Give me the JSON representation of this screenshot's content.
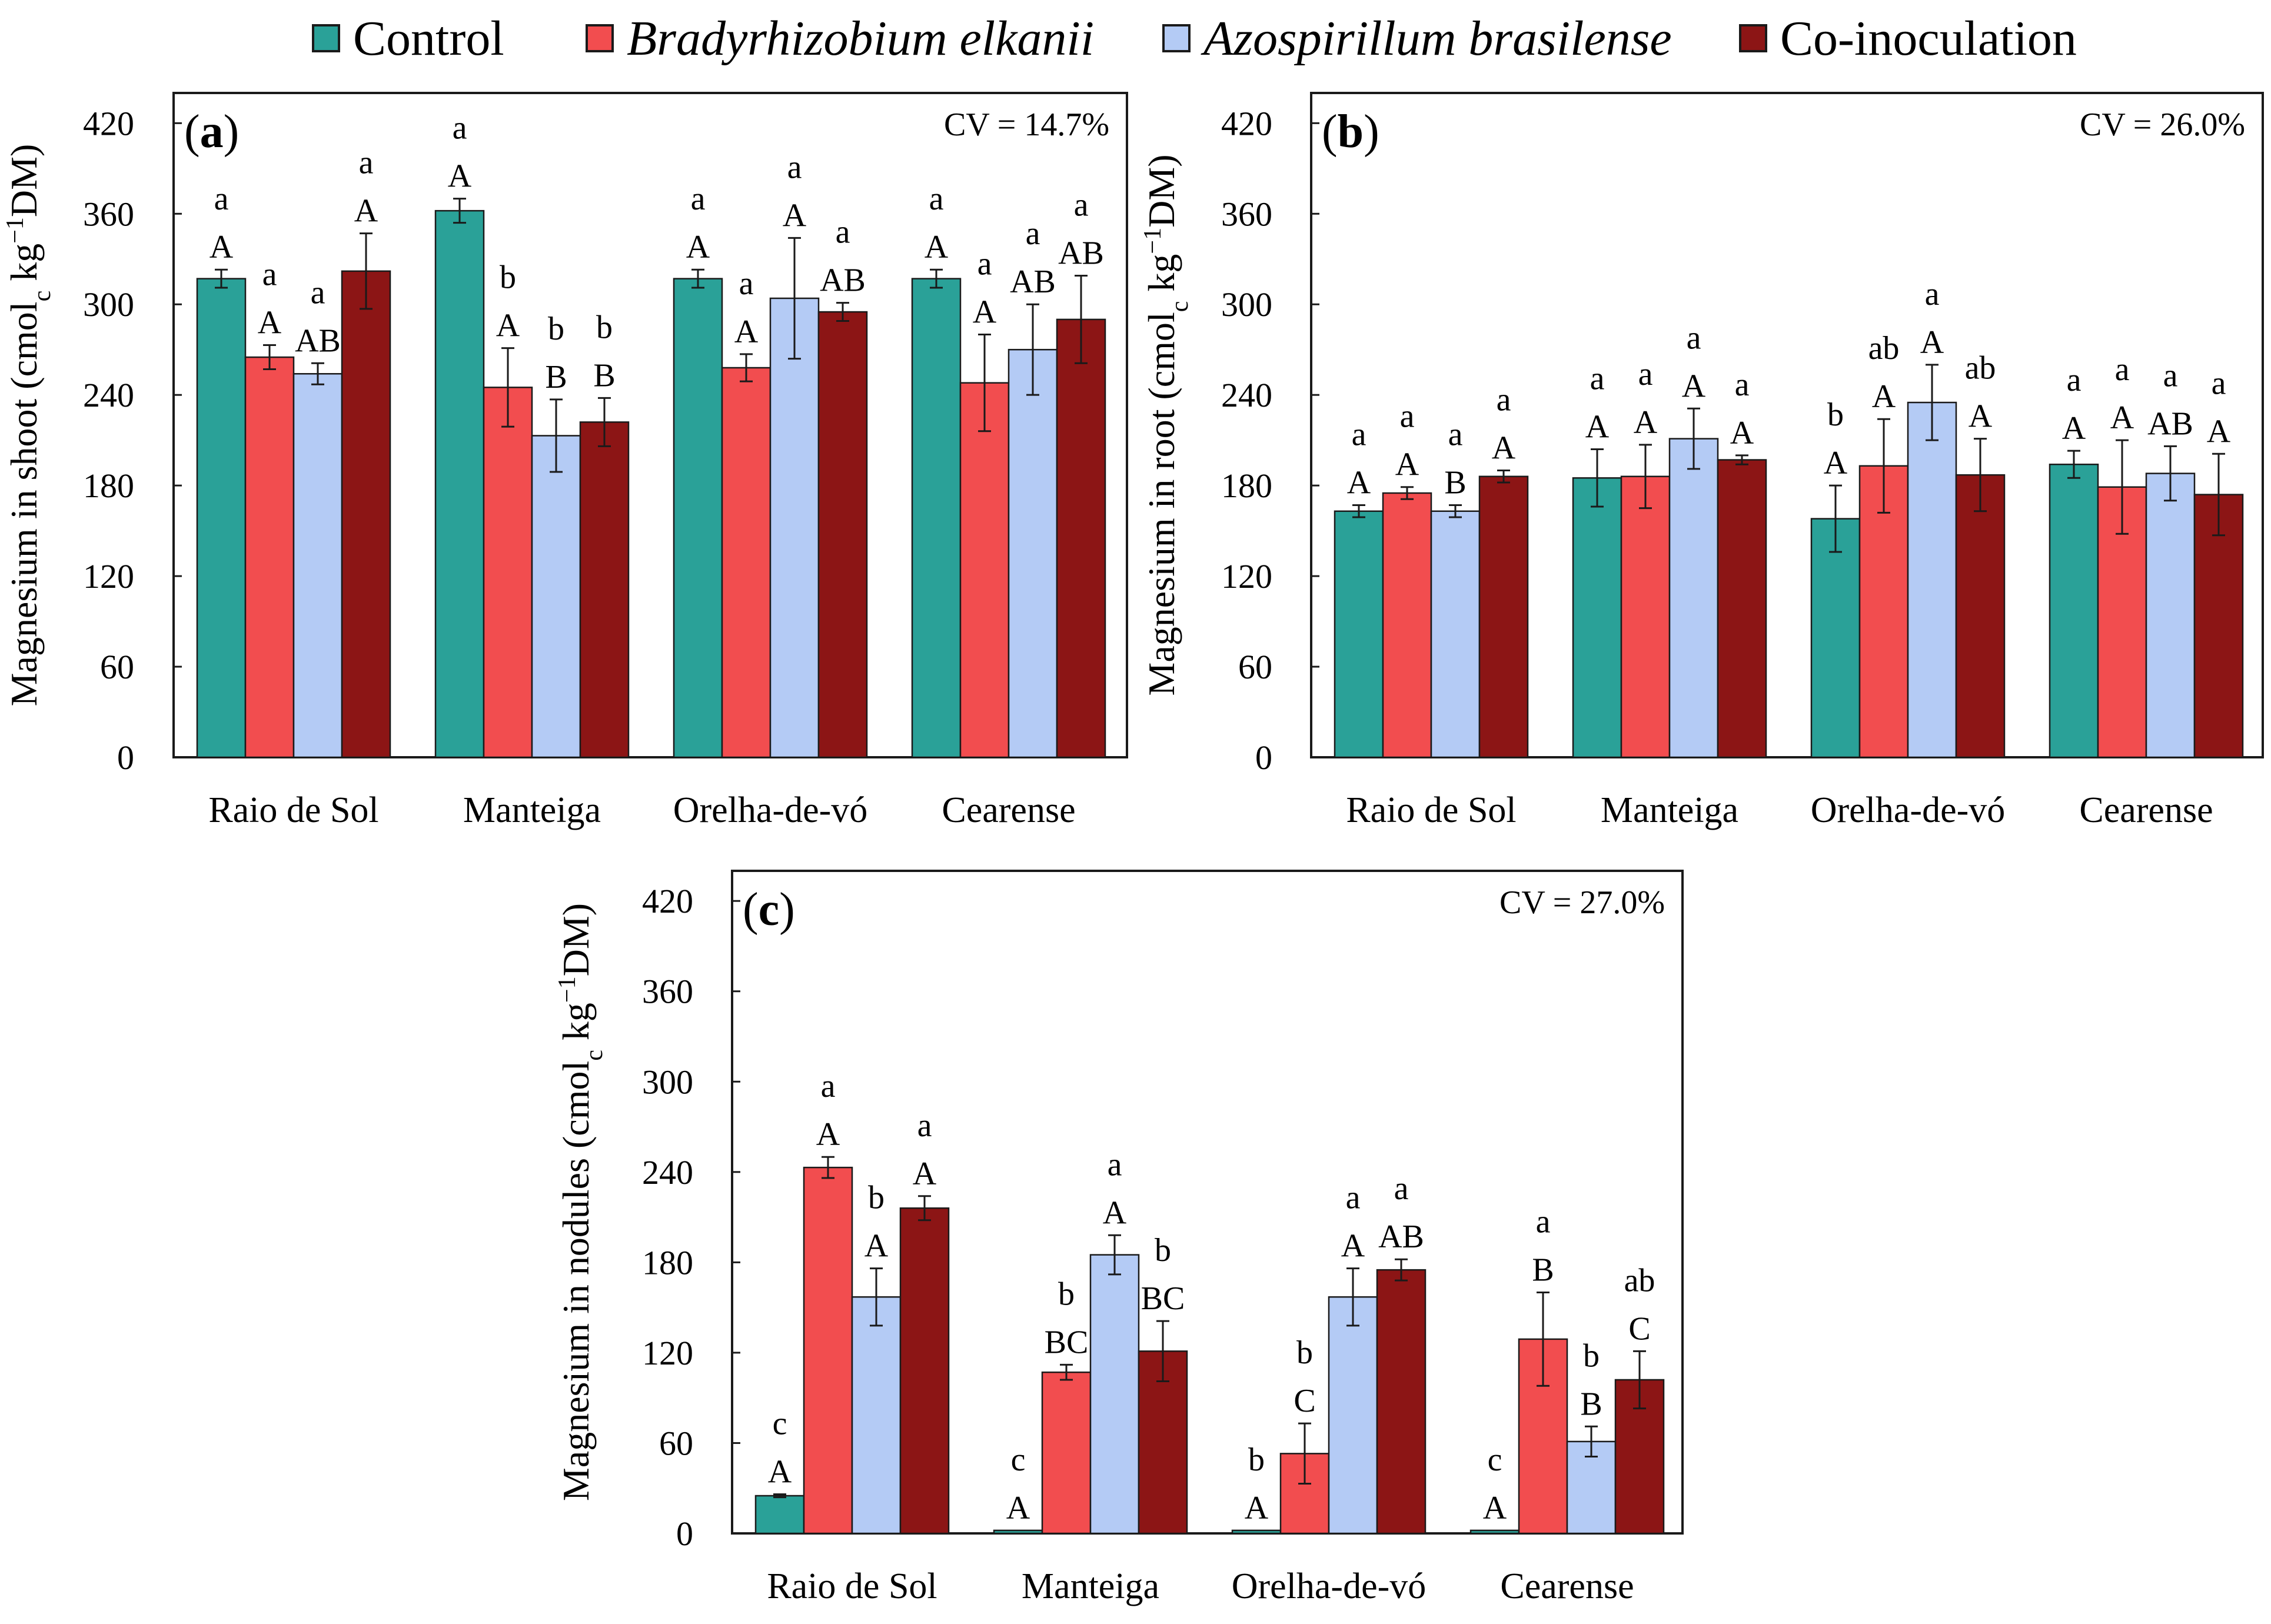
{
  "legend": {
    "items": [
      {
        "label": "Control",
        "color": "#2aa198",
        "italic": false
      },
      {
        "label": "Bradyrhizobium elkanii",
        "color": "#f24d4f",
        "italic": true
      },
      {
        "label": "Azospirillum brasilense",
        "color": "#b4cbf5",
        "italic": true
      },
      {
        "label": "Co-inoculation",
        "color": "#8c1515",
        "italic": false
      }
    ]
  },
  "chart_data": [
    {
      "type": "bar",
      "panel": "(a)",
      "ylabel_pre": "Magnesium in shoot (cmol",
      "ylabel_sub": "c",
      "ylabel_mid": " kg",
      "ylabel_sup": "−1",
      "ylabel_post": "DM)",
      "cv": "CV = 14.7%",
      "ylim": [
        0,
        440
      ],
      "yticks": [
        "0",
        "60",
        "120",
        "180",
        "240",
        "300",
        "360",
        "420"
      ],
      "categories": [
        "Raio de Sol",
        "Manteiga",
        "Orelha-de-vó",
        "Cearense"
      ],
      "series": [
        {
          "name": "Control",
          "values": [
            317,
            362,
            317,
            317
          ],
          "errors": [
            6,
            8,
            6,
            6
          ],
          "caps": [
            "A",
            "A",
            "A",
            "A"
          ],
          "lows": [
            "a",
            "a",
            "a",
            "a"
          ]
        },
        {
          "name": "Bradyrhizobium elkanii",
          "values": [
            265,
            245,
            258,
            248
          ],
          "errors": [
            8,
            26,
            9,
            32
          ],
          "caps": [
            "A",
            "A",
            "A",
            "A"
          ],
          "lows": [
            "a",
            "b",
            "a",
            "a"
          ]
        },
        {
          "name": "Azospirillum brasilense",
          "values": [
            254,
            213,
            304,
            270
          ],
          "errors": [
            7,
            24,
            40,
            30
          ],
          "caps": [
            "AB",
            "B",
            "A",
            "AB"
          ],
          "lows": [
            "a",
            "b",
            "a",
            "a"
          ]
        },
        {
          "name": "Co-inoculation",
          "values": [
            322,
            222,
            295,
            290
          ],
          "errors": [
            25,
            16,
            6,
            29
          ],
          "caps": [
            "A",
            "B",
            "AB",
            "AB"
          ],
          "lows": [
            "a",
            "b",
            "a",
            "a"
          ]
        }
      ]
    },
    {
      "type": "bar",
      "panel": "(b)",
      "ylabel_pre": "Magnesium in root (cmol",
      "ylabel_sub": "c",
      "ylabel_mid": " kg",
      "ylabel_sup": "−1",
      "ylabel_post": "DM)",
      "cv": "CV = 26.0%",
      "ylim": [
        0,
        440
      ],
      "yticks": [
        "0",
        "60",
        "120",
        "180",
        "240",
        "300",
        "360",
        "420"
      ],
      "categories": [
        "Raio de Sol",
        "Manteiga",
        "Orelha-de-vó",
        "Cearense"
      ],
      "series": [
        {
          "name": "Control",
          "values": [
            163,
            185,
            158,
            194
          ],
          "errors": [
            4,
            19,
            22,
            9
          ],
          "caps": [
            "A",
            "A",
            "A",
            "A"
          ],
          "lows": [
            "a",
            "a",
            "b",
            "a"
          ]
        },
        {
          "name": "Bradyrhizobium elkanii",
          "values": [
            175,
            186,
            193,
            179
          ],
          "errors": [
            4,
            21,
            31,
            31
          ],
          "caps": [
            "A",
            "A",
            "A",
            "A"
          ],
          "lows": [
            "a",
            "a",
            "ab",
            "a"
          ]
        },
        {
          "name": "Azospirillum brasilense",
          "values": [
            163,
            211,
            235,
            188
          ],
          "errors": [
            4,
            20,
            25,
            18
          ],
          "caps": [
            "B",
            "A",
            "A",
            "AB"
          ],
          "lows": [
            "a",
            "a",
            "a",
            "a"
          ]
        },
        {
          "name": "Co-inoculation",
          "values": [
            186,
            197,
            187,
            174
          ],
          "errors": [
            4,
            3,
            24,
            27
          ],
          "caps": [
            "A",
            "A",
            "A",
            "A"
          ],
          "lows": [
            "a",
            "a",
            "ab",
            "a"
          ]
        }
      ]
    },
    {
      "type": "bar",
      "panel": "(c)",
      "ylabel_pre": "Magnesium in nodules (cmol",
      "ylabel_sub": "c",
      "ylabel_mid": " kg",
      "ylabel_sup": "−1",
      "ylabel_post": "DM)",
      "cv": "CV = 27.0%",
      "ylim": [
        0,
        440
      ],
      "yticks": [
        "0",
        "60",
        "120",
        "180",
        "240",
        "300",
        "360",
        "420"
      ],
      "categories": [
        "Raio de Sol",
        "Manteiga",
        "Orelha-de-vó",
        "Cearense"
      ],
      "series": [
        {
          "name": "Control",
          "values": [
            25,
            2,
            2,
            2
          ],
          "errors": [
            1,
            0,
            0,
            0
          ],
          "caps": [
            "A",
            "A",
            "A",
            "A"
          ],
          "lows": [
            "c",
            "c",
            "b",
            "c"
          ]
        },
        {
          "name": "Bradyrhizobium elkanii",
          "values": [
            243,
            107,
            53,
            129
          ],
          "errors": [
            7,
            5,
            20,
            31
          ],
          "caps": [
            "A",
            "BC",
            "C",
            "B"
          ],
          "lows": [
            "a",
            "b",
            "b",
            "a"
          ]
        },
        {
          "name": "Azospirillum brasilense",
          "values": [
            157,
            185,
            157,
            61
          ],
          "errors": [
            19,
            13,
            19,
            10
          ],
          "caps": [
            "A",
            "A",
            "A",
            "B"
          ],
          "lows": [
            "b",
            "a",
            "a",
            "b"
          ]
        },
        {
          "name": "Co-inoculation",
          "values": [
            216,
            121,
            175,
            102
          ],
          "errors": [
            8,
            20,
            7,
            19
          ],
          "caps": [
            "A",
            "BC",
            "AB",
            "C"
          ],
          "lows": [
            "a",
            "b",
            "a",
            "ab"
          ]
        }
      ]
    }
  ]
}
